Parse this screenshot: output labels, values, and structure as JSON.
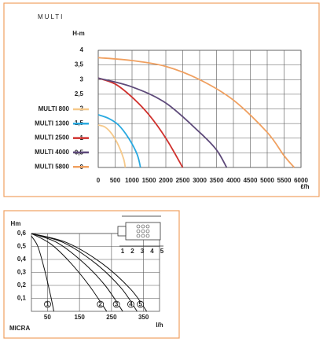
{
  "chart_data": [
    {
      "type": "line",
      "title": "MULTI",
      "y_label": "H-m",
      "x_label": "ℓ/h",
      "xlim": [
        0,
        6000
      ],
      "ylim": [
        0,
        4
      ],
      "xticks": [
        0,
        500,
        1000,
        1500,
        2000,
        2500,
        3000,
        3500,
        4000,
        4500,
        5000,
        5500,
        6000
      ],
      "yticks": [
        0,
        {
          "value": 0.5,
          "label": "0,5"
        },
        1,
        {
          "value": 1.5,
          "label": "1,5"
        },
        2,
        {
          "value": 2.5,
          "label": "2,5"
        },
        3,
        {
          "value": 3.5,
          "label": "3,5"
        },
        4
      ],
      "grid": true,
      "series": [
        {
          "name": "MULTI 800",
          "color": "#f6c98a",
          "x": [
            0,
            200,
            400,
            600,
            750,
            800
          ],
          "values": [
            1.45,
            1.38,
            1.15,
            0.75,
            0.3,
            0
          ]
        },
        {
          "name": "MULTI 1300",
          "color": "#29a9e0",
          "x": [
            0,
            300,
            600,
            900,
            1150,
            1250
          ],
          "values": [
            1.8,
            1.68,
            1.45,
            1.0,
            0.45,
            0
          ]
        },
        {
          "name": "MULTI 2500",
          "color": "#d0312d",
          "x": [
            0,
            500,
            1000,
            1500,
            2000,
            2500
          ],
          "values": [
            3.05,
            2.85,
            2.4,
            1.8,
            1.0,
            0
          ]
        },
        {
          "name": "MULTI 4000",
          "color": "#5e4a7a",
          "x": [
            0,
            1000,
            2000,
            3000,
            3500,
            3800
          ],
          "values": [
            3.05,
            2.75,
            2.2,
            1.2,
            0.6,
            0
          ]
        },
        {
          "name": "MULTI 5800",
          "color": "#f0a060",
          "x": [
            0,
            1000,
            2000,
            3000,
            4000,
            5000,
            5500,
            5800
          ],
          "values": [
            3.75,
            3.65,
            3.45,
            3.0,
            2.3,
            1.2,
            0.4,
            0
          ]
        }
      ]
    },
    {
      "type": "line",
      "title": "MICRA",
      "y_label": "Hm",
      "x_label": "l/h",
      "xlim": [
        0,
        400
      ],
      "ylim": [
        0,
        0.6
      ],
      "xticks": [
        50,
        150,
        250,
        350
      ],
      "yticks": [
        {
          "value": 0.1,
          "label": "0,1"
        },
        {
          "value": 0.2,
          "label": "0,2"
        },
        {
          "value": 0.3,
          "label": "0,3"
        },
        {
          "value": 0.4,
          "label": "0,4"
        },
        {
          "value": 0.5,
          "label": "0,5"
        },
        {
          "value": 0.6,
          "label": "0,6"
        }
      ],
      "grid": true,
      "speed_scale": [
        "1",
        "2",
        "3",
        "4",
        "5"
      ],
      "series": [
        {
          "name": "1",
          "color": "#111111",
          "x": [
            0,
            20,
            40,
            60,
            70
          ],
          "values": [
            0.58,
            0.5,
            0.33,
            0.12,
            0
          ]
        },
        {
          "name": "2",
          "color": "#111111",
          "x": [
            0,
            60,
            120,
            180,
            235
          ],
          "values": [
            0.6,
            0.52,
            0.38,
            0.2,
            0
          ]
        },
        {
          "name": "3",
          "color": "#111111",
          "x": [
            0,
            80,
            160,
            230,
            285
          ],
          "values": [
            0.6,
            0.53,
            0.38,
            0.2,
            0
          ]
        },
        {
          "name": "4",
          "color": "#111111",
          "x": [
            0,
            100,
            200,
            280,
            330
          ],
          "values": [
            0.6,
            0.53,
            0.37,
            0.18,
            0
          ]
        },
        {
          "name": "5",
          "color": "#111111",
          "x": [
            0,
            110,
            220,
            310,
            360
          ],
          "values": [
            0.6,
            0.53,
            0.37,
            0.17,
            0
          ]
        }
      ]
    }
  ]
}
